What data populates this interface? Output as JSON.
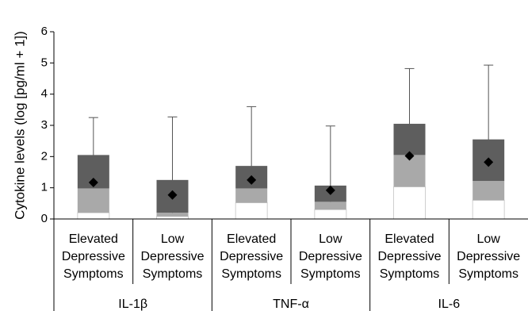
{
  "chart_data": {
    "type": "boxplot",
    "title": "",
    "ylabel": "Cytokine levels (log [pg/ml + 1])",
    "xlabel": "",
    "ylim": [
      0,
      6
    ],
    "yticks": [
      "0",
      "1",
      "2",
      "3",
      "4",
      "5",
      "6"
    ],
    "grid": false,
    "legend": "none",
    "colors": {
      "box_upper": "#5e5e5e",
      "box_lower": "#a9a9a9",
      "box_base": "#ffffff",
      "box_base_border": "#cfcfcf",
      "median": "#000000",
      "whisker": "#555555"
    },
    "groups": [
      {
        "name": "IL-1β",
        "boxes": [
          {
            "label_lines": [
              "Elevated",
              "Depressive",
              "Symptoms"
            ],
            "min": 0.02,
            "q1": 0.2,
            "median": 0.98,
            "q3": 2.05,
            "max": 3.25,
            "mean": 1.17
          },
          {
            "label_lines": [
              "Low",
              "Depressive",
              "Symptoms"
            ],
            "min": 0.02,
            "q1": 0.08,
            "median": 0.2,
            "q3": 1.25,
            "max": 3.27,
            "mean": 0.77
          }
        ]
      },
      {
        "name": "TNF-α",
        "boxes": [
          {
            "label_lines": [
              "Elevated",
              "Depressive",
              "Symptoms"
            ],
            "min": 0.15,
            "q1": 0.52,
            "median": 0.98,
            "q3": 1.7,
            "max": 3.6,
            "mean": 1.25
          },
          {
            "label_lines": [
              "Low",
              "Depressive",
              "Symptoms"
            ],
            "min": 0.05,
            "q1": 0.3,
            "median": 0.55,
            "q3": 1.07,
            "max": 2.98,
            "mean": 0.92
          }
        ]
      },
      {
        "name": "IL-6",
        "boxes": [
          {
            "label_lines": [
              "Elevated",
              "Depressive",
              "Symptoms"
            ],
            "min": 0.3,
            "q1": 1.03,
            "median": 2.05,
            "q3": 3.05,
            "max": 4.82,
            "mean": 2.02
          },
          {
            "label_lines": [
              "Low",
              "Depressive",
              "Symptoms"
            ],
            "min": 0.2,
            "q1": 0.6,
            "median": 1.22,
            "q3": 2.55,
            "max": 4.93,
            "mean": 1.82
          }
        ]
      }
    ]
  }
}
